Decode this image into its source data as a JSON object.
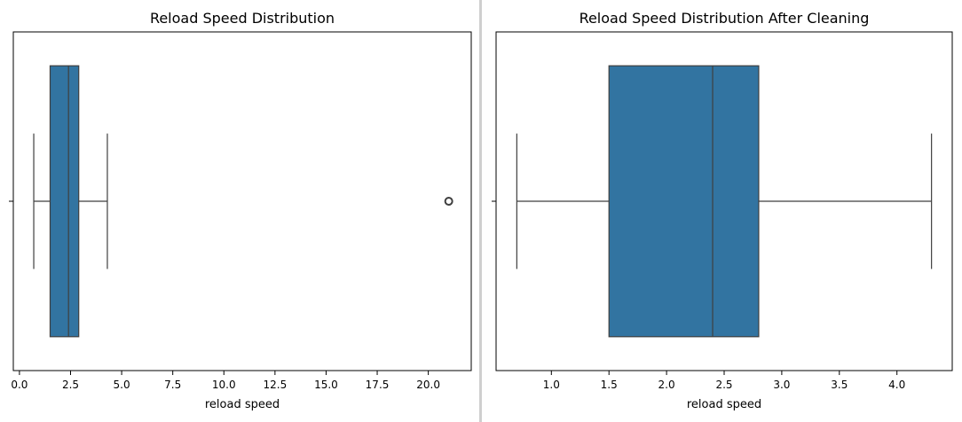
{
  "chart_data": [
    {
      "type": "box",
      "title": "Reload Speed Distribution",
      "xlabel": "reload speed",
      "ylabel": "",
      "xlim": [
        -0.3,
        22.1
      ],
      "xticks": [
        0.0,
        2.5,
        5.0,
        7.5,
        10.0,
        12.5,
        15.0,
        17.5,
        20.0
      ],
      "xtick_labels": [
        "0.0",
        "2.5",
        "5.0",
        "7.5",
        "10.0",
        "12.5",
        "15.0",
        "17.5",
        "20.0"
      ],
      "box": {
        "whisker_low": 0.7,
        "q1": 1.5,
        "median": 2.4,
        "q3": 2.9,
        "whisker_high": 4.3,
        "outliers": [
          21.0
        ]
      },
      "grid": false,
      "color": "#3274a1"
    },
    {
      "type": "box",
      "title": "Reload Speed Distribution After Cleaning",
      "xlabel": "reload speed",
      "ylabel": "",
      "xlim": [
        0.52,
        4.48
      ],
      "xticks": [
        1.0,
        1.5,
        2.0,
        2.5,
        3.0,
        3.5,
        4.0
      ],
      "xtick_labels": [
        "1.0",
        "1.5",
        "2.0",
        "2.5",
        "3.0",
        "3.5",
        "4.0"
      ],
      "box": {
        "whisker_low": 0.7,
        "q1": 1.5,
        "median": 2.4,
        "q3": 2.8,
        "whisker_high": 4.3,
        "outliers": []
      },
      "grid": false,
      "color": "#3274a1"
    }
  ]
}
